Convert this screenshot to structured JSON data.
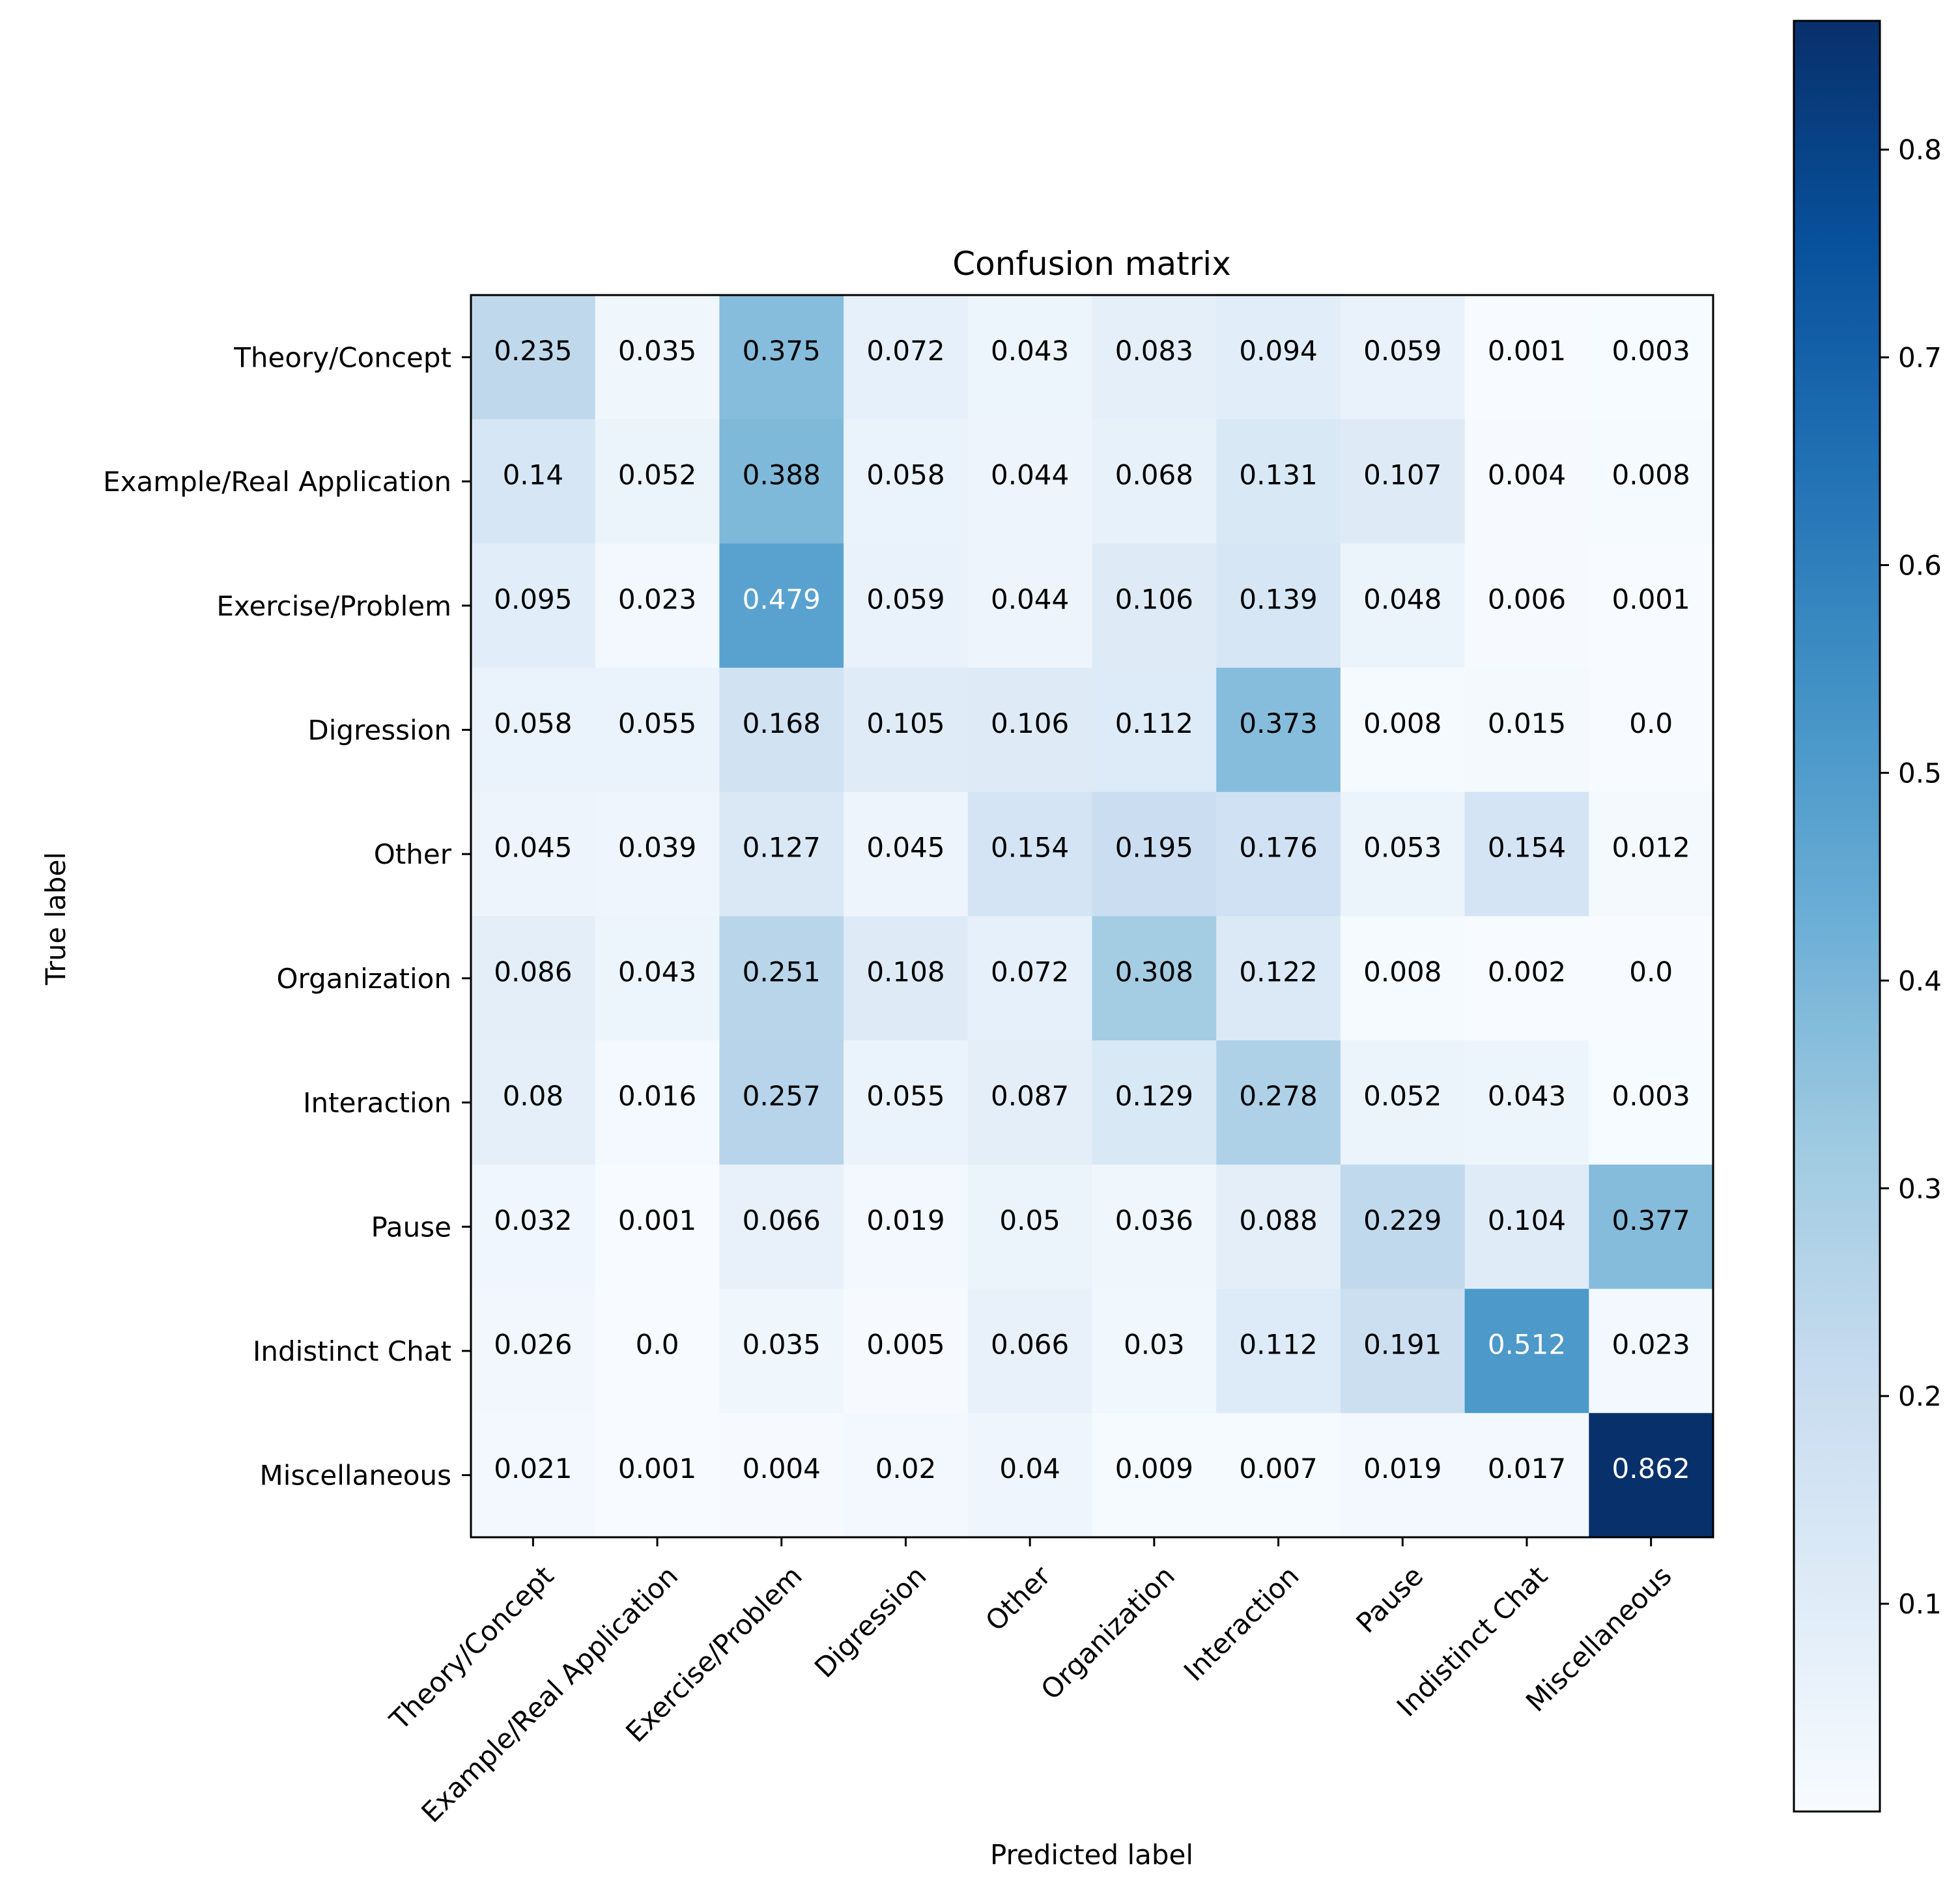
{
  "chart_data": {
    "type": "heatmap",
    "title": "Confusion matrix",
    "xlabel": "Predicted label",
    "ylabel": "True label",
    "x_categories": [
      "Theory/Concept",
      "Example/Real Application",
      "Exercise/Problem",
      "Digression",
      "Other",
      "Organization",
      "Interaction",
      "Pause",
      "Indistinct Chat",
      "Miscellaneous"
    ],
    "y_categories": [
      "Theory/Concept",
      "Example/Real Application",
      "Exercise/Problem",
      "Digression",
      "Other",
      "Organization",
      "Interaction",
      "Pause",
      "Indistinct Chat",
      "Miscellaneous"
    ],
    "values": [
      [
        "0.235",
        "0.035",
        "0.375",
        "0.072",
        "0.043",
        "0.083",
        "0.094",
        "0.059",
        "0.001",
        "0.003"
      ],
      [
        "0.14",
        "0.052",
        "0.388",
        "0.058",
        "0.044",
        "0.068",
        "0.131",
        "0.107",
        "0.004",
        "0.008"
      ],
      [
        "0.095",
        "0.023",
        "0.479",
        "0.059",
        "0.044",
        "0.106",
        "0.139",
        "0.048",
        "0.006",
        "0.001"
      ],
      [
        "0.058",
        "0.055",
        "0.168",
        "0.105",
        "0.106",
        "0.112",
        "0.373",
        "0.008",
        "0.015",
        "0.0"
      ],
      [
        "0.045",
        "0.039",
        "0.127",
        "0.045",
        "0.154",
        "0.195",
        "0.176",
        "0.053",
        "0.154",
        "0.012"
      ],
      [
        "0.086",
        "0.043",
        "0.251",
        "0.108",
        "0.072",
        "0.308",
        "0.122",
        "0.008",
        "0.002",
        "0.0"
      ],
      [
        "0.08",
        "0.016",
        "0.257",
        "0.055",
        "0.087",
        "0.129",
        "0.278",
        "0.052",
        "0.043",
        "0.003"
      ],
      [
        "0.032",
        "0.001",
        "0.066",
        "0.019",
        "0.05",
        "0.036",
        "0.088",
        "0.229",
        "0.104",
        "0.377"
      ],
      [
        "0.026",
        "0.0",
        "0.035",
        "0.005",
        "0.066",
        "0.03",
        "0.112",
        "0.191",
        "0.512",
        "0.023"
      ],
      [
        "0.021",
        "0.001",
        "0.004",
        "0.02",
        "0.04",
        "0.009",
        "0.007",
        "0.019",
        "0.017",
        "0.862"
      ]
    ],
    "colormap": "Blues",
    "color_range": [
      0.0,
      0.862
    ],
    "colorbar_ticks": [
      "0.1",
      "0.2",
      "0.3",
      "0.4",
      "0.5",
      "0.6",
      "0.7",
      "0.8"
    ],
    "grid": false
  }
}
